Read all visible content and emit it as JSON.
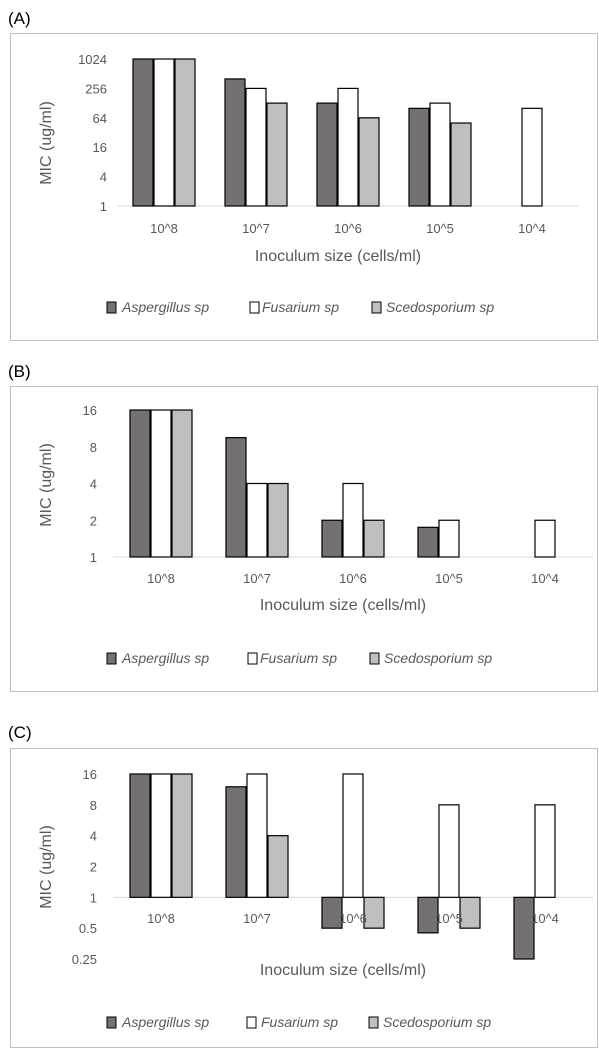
{
  "series_style": [
    {
      "name": "Aspergillus sp",
      "color": "#767171"
    },
    {
      "name": "Fusarium sp",
      "color": "#ffffff"
    },
    {
      "name": "Scedosporium sp",
      "color": "#bfbfbf"
    }
  ],
  "chart_data": [
    {
      "type": "bar",
      "panel_label": "(A)",
      "title": "",
      "xlabel": "Inoculum size (cells/ml)",
      "ylabel": "MIC (ug/ml)",
      "scale": "log2",
      "baseline": 1,
      "yticks": [
        "1",
        "4",
        "16",
        "64",
        "256",
        "1024"
      ],
      "ytick_values": [
        1,
        4,
        16,
        64,
        256,
        1024
      ],
      "ylim": [
        1,
        1024
      ],
      "legend_position": "bottom",
      "grid": false,
      "categories": [
        "10^8",
        "10^7",
        "10^6",
        "10^5",
        "10^4"
      ],
      "series": [
        {
          "name": "Aspergillus sp",
          "values": [
            1024,
            400,
            128,
            100,
            null
          ]
        },
        {
          "name": "Fusarium sp",
          "values": [
            1024,
            256,
            256,
            128,
            100
          ]
        },
        {
          "name": "Scedosporium sp",
          "values": [
            1024,
            128,
            64,
            50,
            null
          ]
        }
      ]
    },
    {
      "type": "bar",
      "panel_label": "(B)",
      "title": "",
      "xlabel": "Inoculum size (cells/ml)",
      "ylabel": "MIC (ug/ml)",
      "scale": "log2",
      "baseline": 1,
      "yticks": [
        "1",
        "2",
        "4",
        "8",
        "16"
      ],
      "ytick_values": [
        1,
        2,
        4,
        8,
        16
      ],
      "ylim": [
        1,
        16
      ],
      "legend_position": "bottom",
      "grid": false,
      "categories": [
        "10^8",
        "10^7",
        "10^6",
        "10^5",
        "10^4"
      ],
      "series": [
        {
          "name": "Aspergillus sp",
          "values": [
            16,
            9.5,
            2,
            1.75,
            null
          ]
        },
        {
          "name": "Fusarium sp",
          "values": [
            16,
            4,
            4,
            2,
            2
          ]
        },
        {
          "name": "Scedosporium sp",
          "values": [
            16,
            4,
            2,
            null,
            null
          ]
        }
      ]
    },
    {
      "type": "bar",
      "panel_label": "(C)",
      "title": "",
      "xlabel": "Inoculum size (cells/ml)",
      "ylabel": "MIC (ug/ml)",
      "scale": "log2",
      "baseline": 1,
      "yticks": [
        "0.25",
        "0.5",
        "1",
        "2",
        "4",
        "8",
        "16"
      ],
      "ytick_values": [
        0.25,
        0.5,
        1,
        2,
        4,
        8,
        16
      ],
      "ylim": [
        0.25,
        16
      ],
      "legend_position": "bottom",
      "grid": false,
      "categories": [
        "10^8",
        "10^7",
        "10^6",
        "10^5",
        "10^4"
      ],
      "series": [
        {
          "name": "Aspergillus sp",
          "values": [
            16,
            12,
            0.5,
            0.45,
            0.25
          ]
        },
        {
          "name": "Fusarium sp",
          "values": [
            16,
            16,
            16,
            8,
            8
          ]
        },
        {
          "name": "Scedosporium sp",
          "values": [
            16,
            4,
            0.5,
            0.5,
            null
          ]
        }
      ]
    }
  ]
}
